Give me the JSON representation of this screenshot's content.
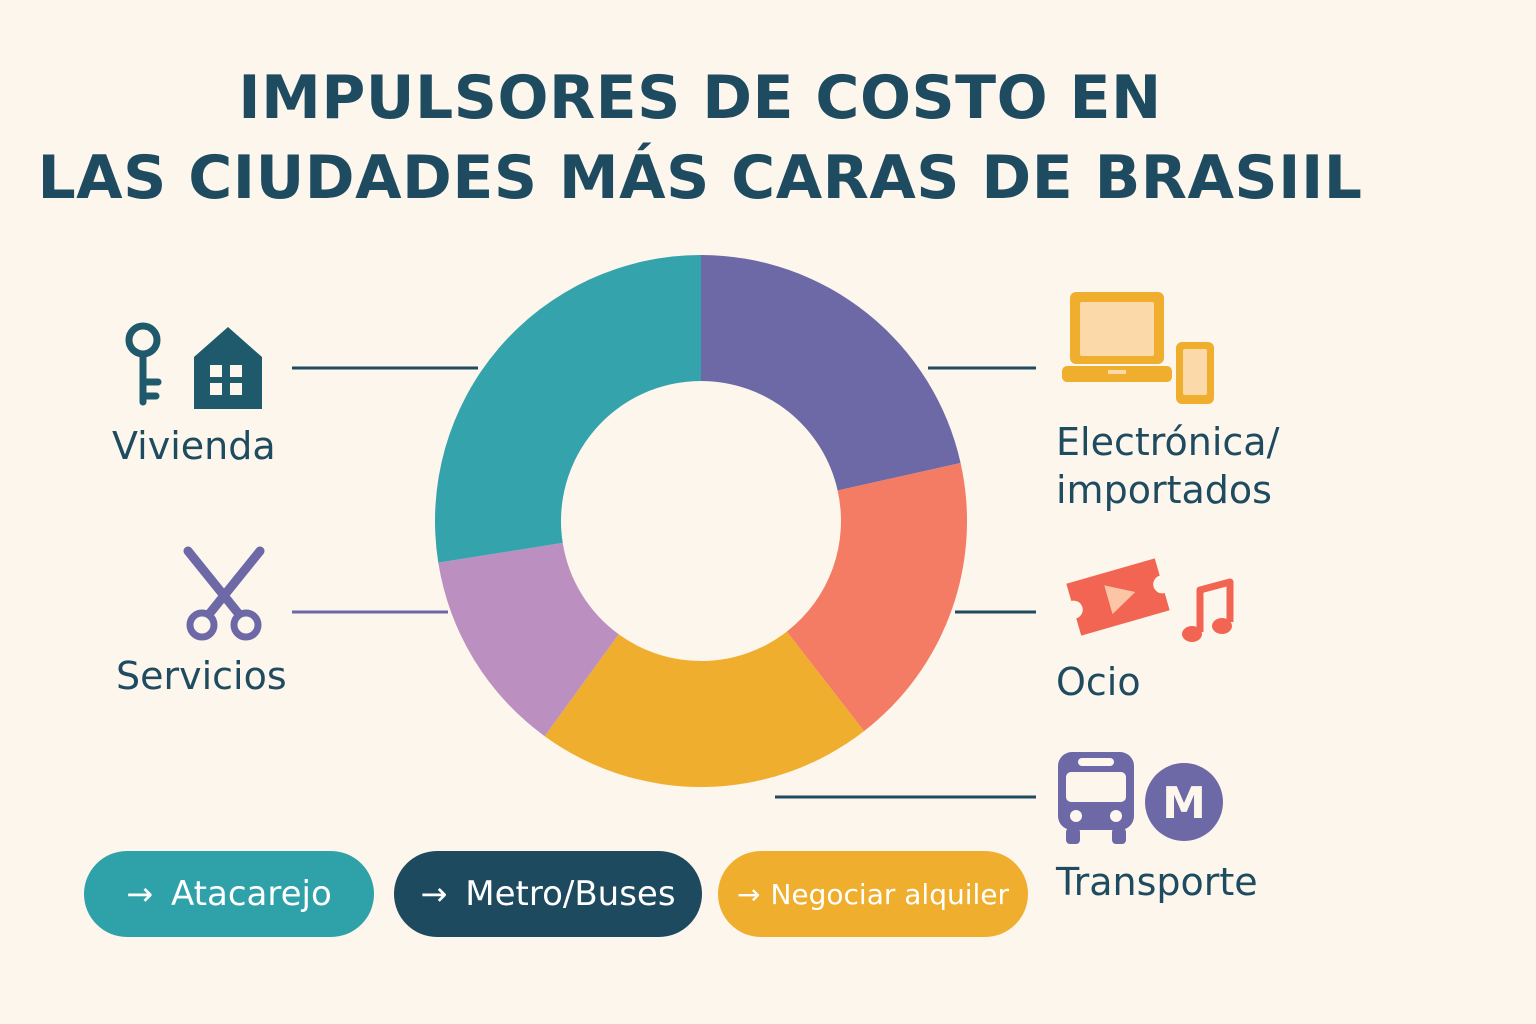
{
  "title": {
    "line1": "IMPULSORES DE COSTO EN",
    "line2": "LAS CIUDADES MÁS CARAS DE BRASIIL"
  },
  "chart_data": {
    "type": "pie",
    "style": "donut",
    "title": "IMPULSORES DE COSTO EN LAS CIUDADES MÁS CARAS DE BRASIIL",
    "unit": "percent (estimated share, no values printed)",
    "slices": [
      {
        "label": "Electrónica/ importados",
        "value": 21.5,
        "color": "#6d68a6",
        "icon": "laptop-phone-icon"
      },
      {
        "label": "Ocio",
        "value": 18,
        "color": "#f47b64",
        "icon": "ticket-music-icon"
      },
      {
        "label": "Transporte",
        "value": 20.5,
        "color": "#f0ae2e",
        "icon": "bus-metro-icon"
      },
      {
        "label": "Servicios",
        "value": 12.5,
        "color": "#bb90c0",
        "icon": "scissors-icon"
      },
      {
        "label": "Vivienda",
        "value": 27.5,
        "color": "#35a3ac",
        "icon": "key-house-icon"
      }
    ],
    "legend": "callout labels on both sides"
  },
  "labels": {
    "vivienda": "Vivienda",
    "servicios": "Servicios",
    "electronica_line1": "Electrónica/",
    "electronica_line2": "importados",
    "ocio": "Ocio",
    "transporte": "Transporte"
  },
  "metro_letter": "M",
  "actions": [
    {
      "label": "Atacarejo",
      "arrow": "→",
      "color": "#2fa2a9"
    },
    {
      "label": "Metro/Buses",
      "arrow": "→",
      "color": "#1d4a5e"
    },
    {
      "label": "Negociar alquiler",
      "arrow": "→",
      "color": "#f0ae2e"
    }
  ],
  "colors": {
    "background": "#fcf6ec",
    "text": "#1f4b60",
    "leader_line_dark": "#1f4b60",
    "leader_line_purple": "#6d68a6"
  }
}
